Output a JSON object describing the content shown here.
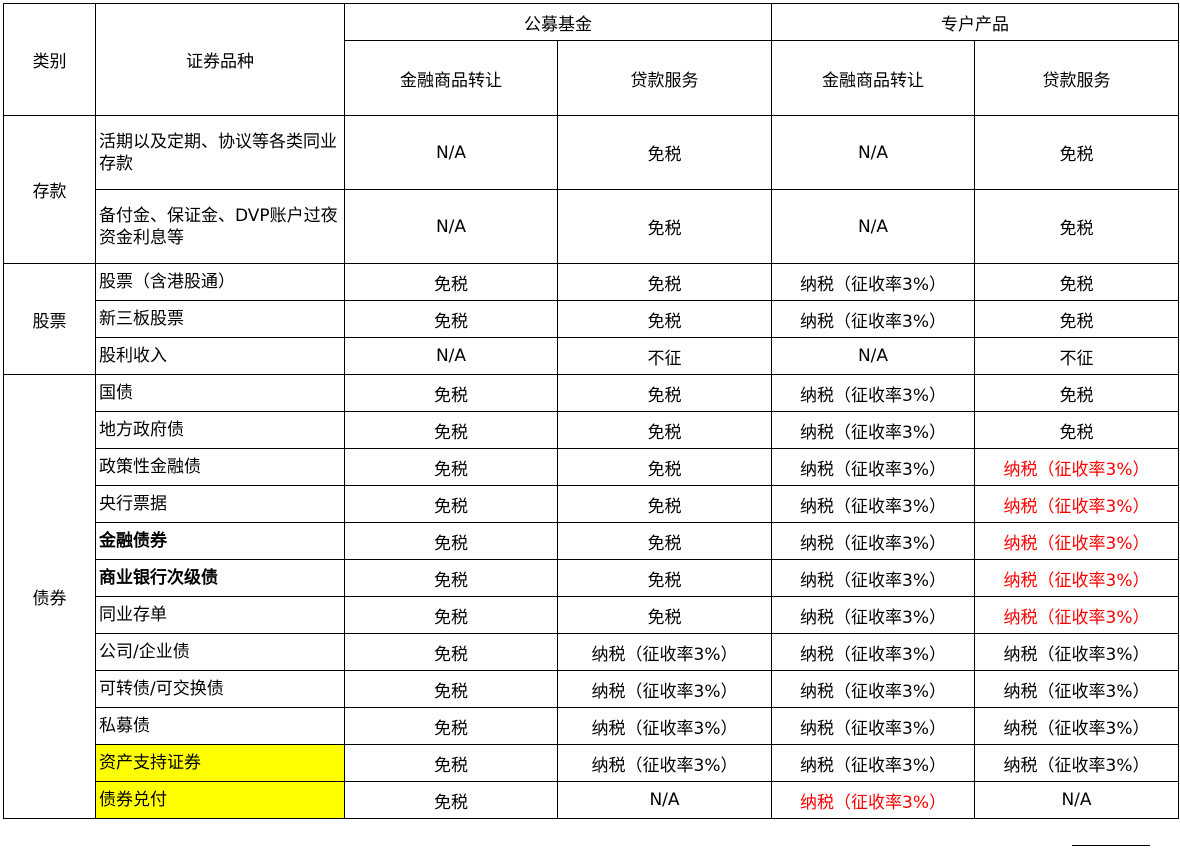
{
  "header": {
    "category": "类别",
    "security_type": "证券品种",
    "group_public_fund": "公募基金",
    "group_special_product": "专户产品",
    "col_financial_transfer": "金融商品转让",
    "col_loan_service": "贷款服务"
  },
  "categories": {
    "deposit": "存款",
    "stock": "股票",
    "bond": "债券"
  },
  "rows": [
    {
      "item": "活期以及定期、协议等各类同业存款",
      "pub_fin": "N/A",
      "pub_loan": "免税",
      "sp_fin": "N/A",
      "sp_loan": "免税"
    },
    {
      "item": "备付金、保证金、DVP账户过夜资金利息等",
      "pub_fin": "N/A",
      "pub_loan": "免税",
      "sp_fin": "N/A",
      "sp_loan": "免税"
    },
    {
      "item": "股票（含港股通）",
      "pub_fin": "免税",
      "pub_loan": "免税",
      "sp_fin": "纳税（征收率3%）",
      "sp_loan": "免税"
    },
    {
      "item": "新三板股票",
      "pub_fin": "免税",
      "pub_loan": "免税",
      "sp_fin": "纳税（征收率3%）",
      "sp_loan": "免税"
    },
    {
      "item": "股利收入",
      "pub_fin": "N/A",
      "pub_loan": "不征",
      "sp_fin": "N/A",
      "sp_loan": "不征"
    },
    {
      "item": "国债",
      "pub_fin": "免税",
      "pub_loan": "免税",
      "sp_fin": "纳税（征收率3%）",
      "sp_loan": "免税"
    },
    {
      "item": "地方政府债",
      "pub_fin": "免税",
      "pub_loan": "免税",
      "sp_fin": "纳税（征收率3%）",
      "sp_loan": "免税"
    },
    {
      "item": "政策性金融债",
      "pub_fin": "免税",
      "pub_loan": "免税",
      "sp_fin": "纳税（征收率3%）",
      "sp_loan": "纳税（征收率3%）"
    },
    {
      "item": "央行票据",
      "pub_fin": "免税",
      "pub_loan": "免税",
      "sp_fin": "纳税（征收率3%）",
      "sp_loan": "纳税（征收率3%）"
    },
    {
      "item": "金融债券",
      "pub_fin": "免税",
      "pub_loan": "免税",
      "sp_fin": "纳税（征收率3%）",
      "sp_loan": "纳税（征收率3%）"
    },
    {
      "item": "商业银行次级债",
      "pub_fin": "免税",
      "pub_loan": "免税",
      "sp_fin": "纳税（征收率3%）",
      "sp_loan": "纳税（征收率3%）"
    },
    {
      "item": "同业存单",
      "pub_fin": "免税",
      "pub_loan": "免税",
      "sp_fin": "纳税（征收率3%）",
      "sp_loan": "纳税（征收率3%）"
    },
    {
      "item": "公司/企业债",
      "pub_fin": "免税",
      "pub_loan": "纳税（征收率3%）",
      "sp_fin": "纳税（征收率3%）",
      "sp_loan": "纳税（征收率3%）"
    },
    {
      "item": "可转债/可交换债",
      "pub_fin": "免税",
      "pub_loan": "纳税（征收率3%）",
      "sp_fin": "纳税（征收率3%）",
      "sp_loan": "纳税（征收率3%）"
    },
    {
      "item": "私募债",
      "pub_fin": "免税",
      "pub_loan": "纳税（征收率3%）",
      "sp_fin": "纳税（征收率3%）",
      "sp_loan": "纳税（征收率3%）"
    },
    {
      "item": "资产支持证券",
      "pub_fin": "免税",
      "pub_loan": "纳税（征收率3%）",
      "sp_fin": "纳税（征收率3%）",
      "sp_loan": "纳税（征收率3%）"
    },
    {
      "item": "债券兑付",
      "pub_fin": "免税",
      "pub_loan": "N/A",
      "sp_fin": "纳税（征收率3%）",
      "sp_loan": "N/A"
    }
  ],
  "colors": {
    "highlight": "#ffff00",
    "alert_text": "#ff0000",
    "border": "#000000"
  }
}
